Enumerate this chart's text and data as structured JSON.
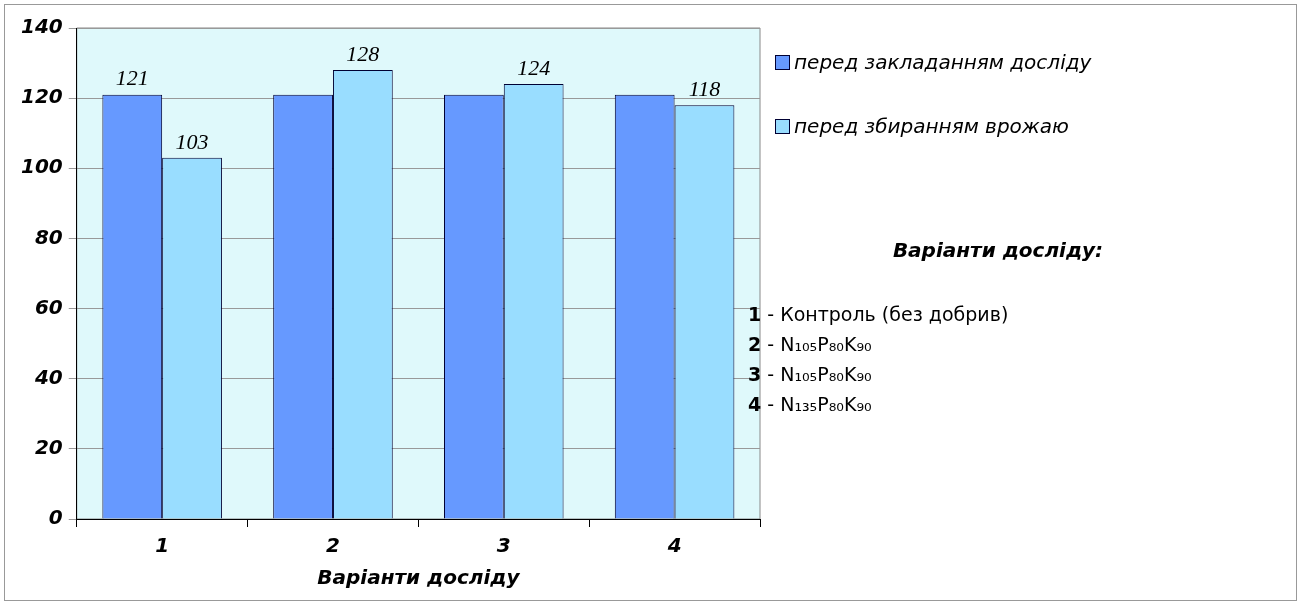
{
  "chart_data": {
    "type": "bar",
    "xlabel": "Варіанти досліду",
    "categories": [
      "1",
      "2",
      "3",
      "4"
    ],
    "series": [
      {
        "name": "перед закладанням досліду",
        "color": "#6699ff",
        "values": [
          121,
          121,
          121,
          121
        ],
        "value_labels": [
          "121",
          null,
          null,
          null
        ]
      },
      {
        "name": "перед збиранням врожаю",
        "color": "#99ddff",
        "values": [
          103,
          128,
          124,
          118
        ],
        "value_labels": [
          "103",
          "128",
          "124",
          "118"
        ]
      }
    ],
    "ylim": [
      0,
      140
    ],
    "yticks": [
      0,
      20,
      40,
      60,
      80,
      100,
      120,
      140
    ],
    "grid": "y",
    "legend": "right",
    "annotations": [
      "Варіанти досліду:",
      "1 - Контроль (без добрив)",
      "2 - N₁₀₅P₈₀K₉₀",
      "3 - N₁₀₅P₈₀K₉₀",
      "4 - N₁₃₅P₈₀K₉₀"
    ]
  }
}
